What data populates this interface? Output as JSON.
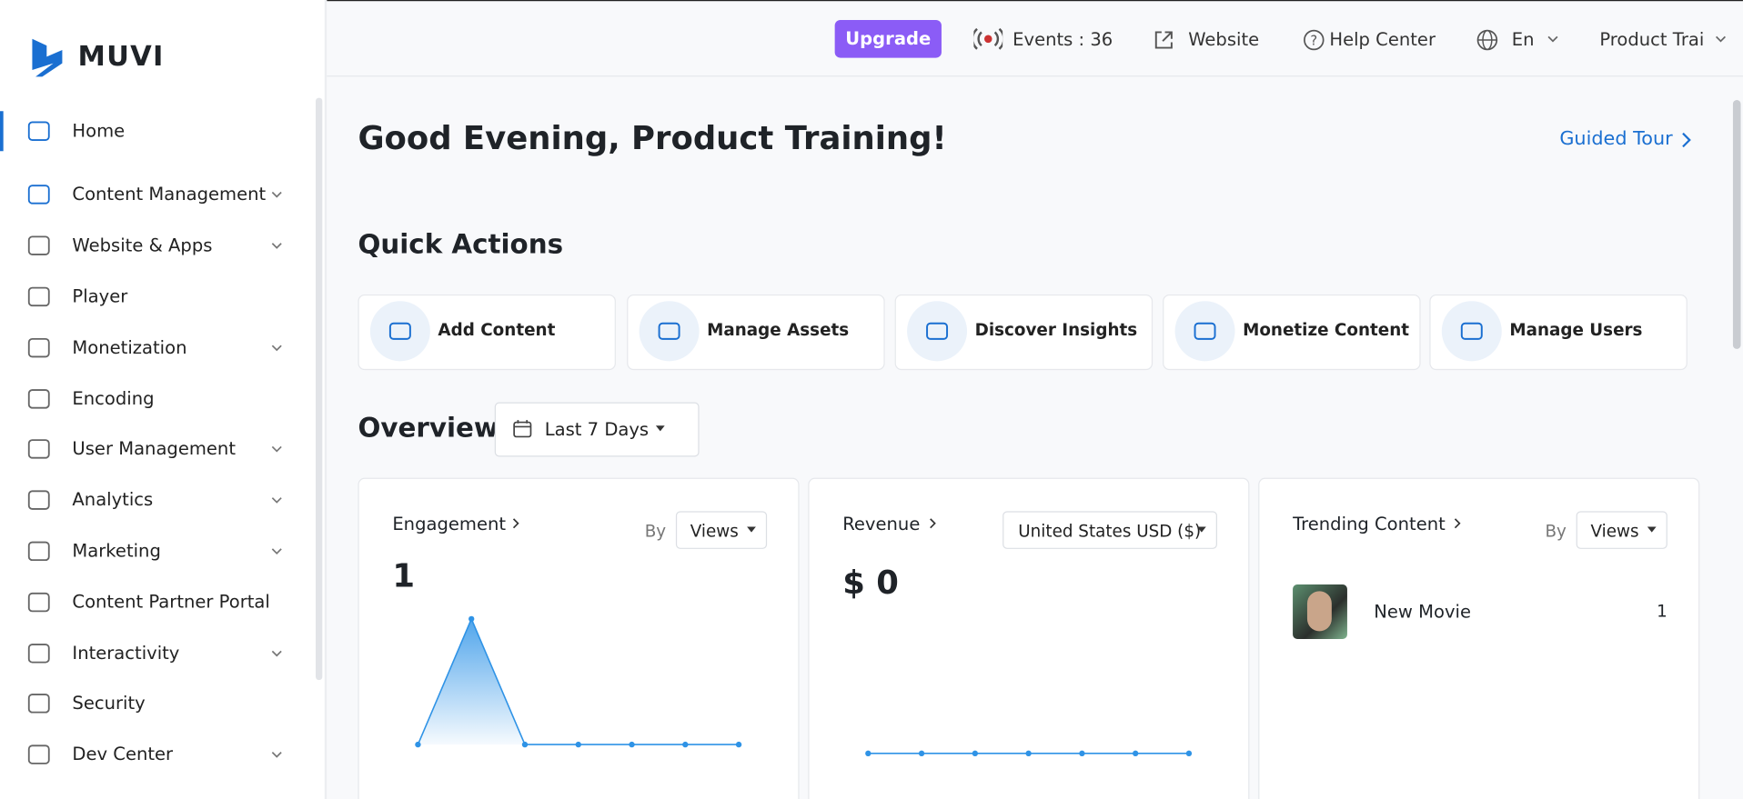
{
  "header": {
    "logo": "MUVI",
    "upgrade": "Upgrade",
    "events": "Events : 36",
    "website": "Website",
    "help": "Help Center",
    "language": "En",
    "user": "Product Trai"
  },
  "sidebar": {
    "items": [
      {
        "label": "Home",
        "expandable": false,
        "active": true
      },
      {
        "label": "Content Management",
        "expandable": true,
        "active": false
      },
      {
        "label": "Website & Apps",
        "expandable": true,
        "active": false
      },
      {
        "label": "Player",
        "expandable": false,
        "active": false
      },
      {
        "label": "Monetization",
        "expandable": true,
        "active": false
      },
      {
        "label": "Encoding",
        "expandable": false,
        "active": false
      },
      {
        "label": "User Management",
        "expandable": true,
        "active": false
      },
      {
        "label": "Analytics",
        "expandable": true,
        "active": false
      },
      {
        "label": "Marketing",
        "expandable": true,
        "active": false
      },
      {
        "label": "Content Partner Portal",
        "expandable": false,
        "active": false
      },
      {
        "label": "Interactivity",
        "expandable": true,
        "active": false
      },
      {
        "label": "Security",
        "expandable": false,
        "active": false
      },
      {
        "label": "Dev Center",
        "expandable": true,
        "active": false
      }
    ]
  },
  "main": {
    "greeting": "Good Evening, Product Training!",
    "guided_tour": "Guided Tour",
    "quick_actions": {
      "title": "Quick Actions",
      "items": [
        "Add Content",
        "Manage Assets",
        "Discover Insights",
        "Monetize Content",
        "Manage Users"
      ]
    },
    "overview": {
      "title": "Overview",
      "period": "Last 7 Days"
    },
    "engagement": {
      "title": "Engagement",
      "by": "By",
      "metric": "Views",
      "total": "1",
      "series": [
        0,
        1,
        0,
        0,
        0,
        0,
        0
      ]
    },
    "revenue": {
      "title": "Revenue",
      "currency": "United States USD ($)",
      "total": "$ 0",
      "series": [
        0,
        0,
        0,
        0,
        0,
        0,
        0
      ]
    },
    "trending": {
      "title": "Trending Content",
      "by": "By",
      "metric": "Views",
      "items": [
        {
          "name": "New Movie",
          "views": 1
        }
      ]
    }
  }
}
